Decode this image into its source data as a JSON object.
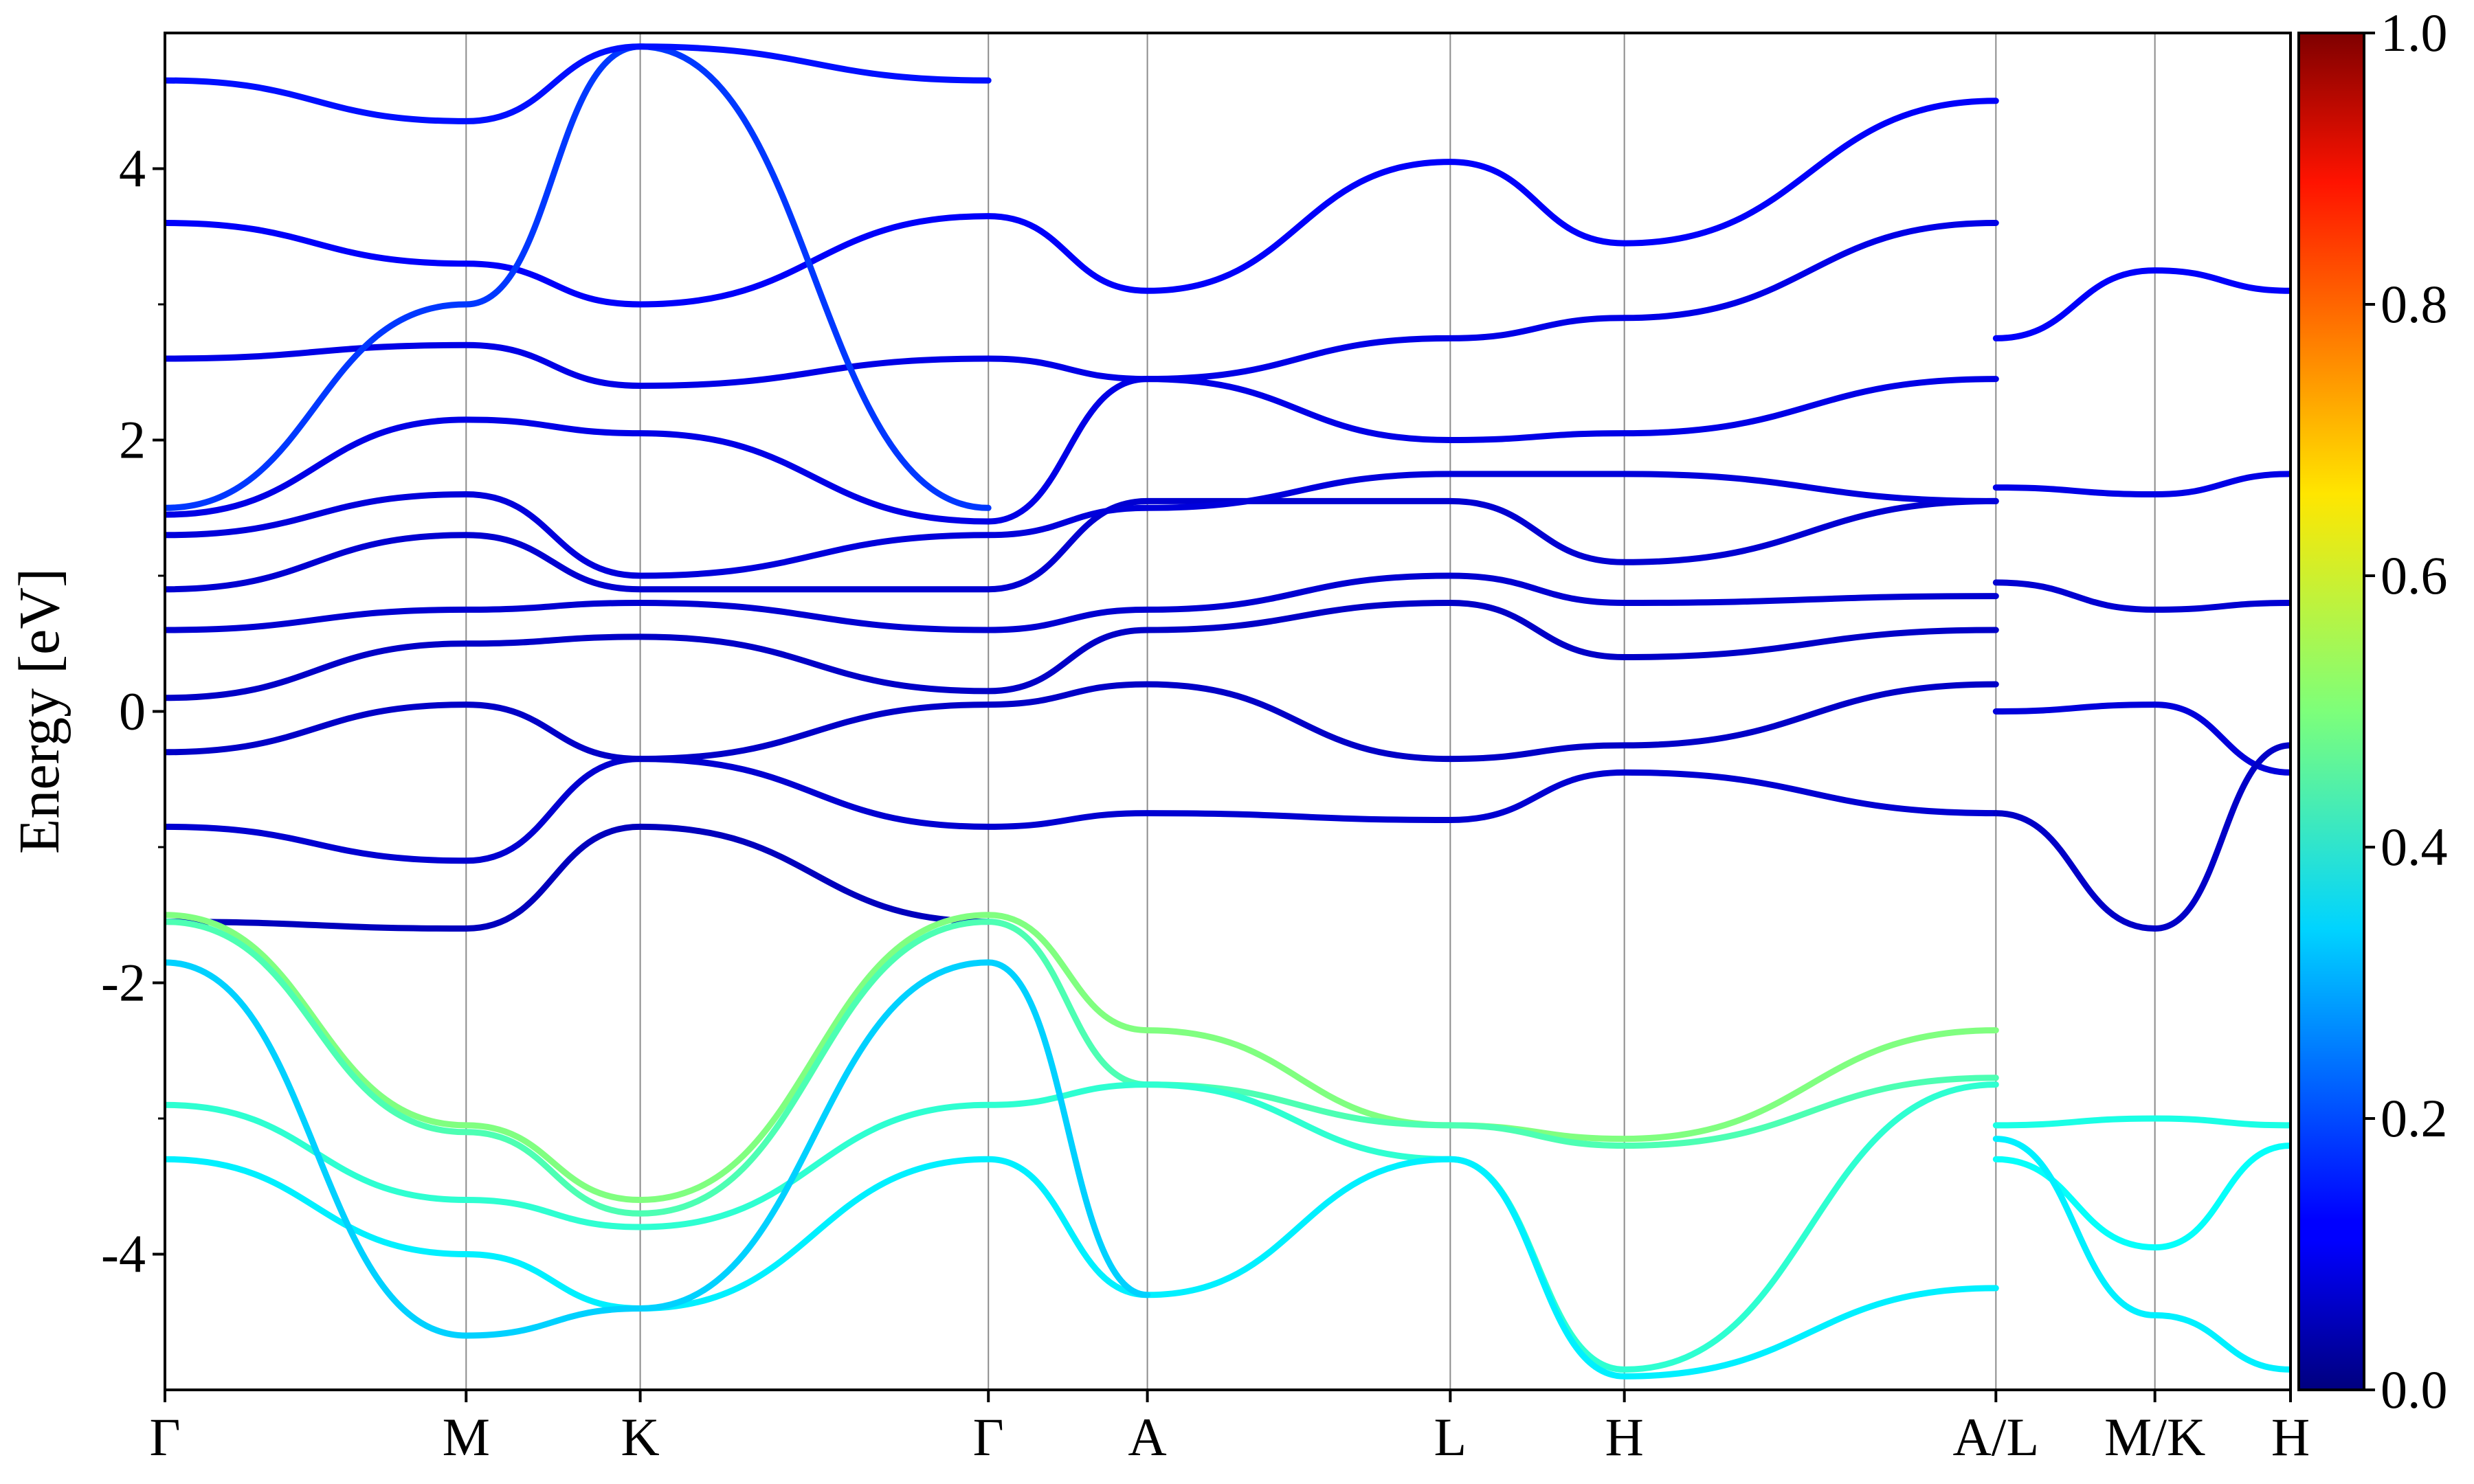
{
  "chart_data": {
    "type": "line",
    "ylabel": "Energy [eV]",
    "xlabel": "",
    "ylim": [
      -5,
      5
    ],
    "xlim": [
      0,
      1
    ],
    "yticks": [
      -4,
      -2,
      0,
      2,
      4
    ],
    "yticks_minor": [
      -3,
      -1,
      1,
      3
    ],
    "grid": "vertical lines at high-symmetry points",
    "kpoints": [
      {
        "label": "Γ",
        "pos": 0.0
      },
      {
        "label": "M",
        "pos": 0.1417
      },
      {
        "label": "K",
        "pos": 0.2236
      },
      {
        "label": "Γ",
        "pos": 0.3874
      },
      {
        "label": "A",
        "pos": 0.4622
      },
      {
        "label": "L",
        "pos": 0.6047
      },
      {
        "label": "H",
        "pos": 0.6866
      },
      {
        "label": "A/L",
        "pos": 0.8614
      },
      {
        "label": "M/K",
        "pos": 0.9362
      },
      {
        "label": "H",
        "pos": 1.0
      }
    ],
    "colorbar": {
      "colormap": "jet",
      "range": [
        0.0,
        1.0
      ],
      "ticks": [
        "0.0",
        "0.2",
        "0.4",
        "0.6",
        "0.8",
        "1.0"
      ],
      "placement": "right"
    },
    "series": [
      {
        "weight": 0.06,
        "x": [
          0,
          0.1417,
          0.2236,
          0.3874
        ],
        "y": [
          -1.55,
          -1.6,
          -0.85,
          -1.55
        ]
      },
      {
        "weight": 0.08,
        "x": [
          0,
          0.1417,
          0.2236,
          0.3874,
          0.4622,
          0.6047,
          0.6866,
          0.8614
        ],
        "y": [
          -0.85,
          -1.1,
          -0.35,
          -0.85,
          -0.75,
          -0.8,
          -0.45,
          -0.75
        ]
      },
      {
        "weight": 0.07,
        "x": [
          0,
          0.1417,
          0.2236,
          0.3874,
          0.4622,
          0.6047,
          0.6866,
          0.8614
        ],
        "y": [
          -0.3,
          0.05,
          -0.35,
          0.05,
          0.2,
          -0.35,
          -0.25,
          0.2
        ]
      },
      {
        "weight": 0.07,
        "x": [
          0,
          0.1417,
          0.2236,
          0.3874,
          0.4622,
          0.6047,
          0.6866,
          0.8614
        ],
        "y": [
          0.1,
          0.5,
          0.55,
          0.15,
          0.6,
          0.8,
          0.4,
          0.6
        ]
      },
      {
        "weight": 0.08,
        "x": [
          0,
          0.1417,
          0.2236,
          0.3874,
          0.4622,
          0.6047,
          0.6866,
          0.8614
        ],
        "y": [
          0.6,
          0.75,
          0.8,
          0.6,
          0.75,
          1.0,
          0.8,
          0.85
        ]
      },
      {
        "weight": 0.08,
        "x": [
          0,
          0.1417,
          0.2236,
          0.3874,
          0.4622,
          0.6047,
          0.6866,
          0.8614
        ],
        "y": [
          0.9,
          1.3,
          0.9,
          0.9,
          1.55,
          1.55,
          1.1,
          1.55
        ]
      },
      {
        "weight": 0.09,
        "x": [
          0,
          0.1417,
          0.2236,
          0.3874,
          0.4622,
          0.6047,
          0.6866,
          0.8614
        ],
        "y": [
          1.3,
          1.6,
          1.0,
          1.3,
          1.5,
          1.75,
          1.75,
          1.55
        ]
      },
      {
        "weight": 0.1,
        "x": [
          0,
          0.1417,
          0.2236,
          0.3874,
          0.4622,
          0.6047,
          0.6866,
          0.8614
        ],
        "y": [
          1.45,
          2.15,
          2.05,
          1.4,
          2.45,
          2.0,
          2.05,
          2.45
        ]
      },
      {
        "weight": 0.1,
        "x": [
          0,
          0.1417,
          0.2236,
          0.3874,
          0.4622,
          0.6047,
          0.6866,
          0.8614
        ],
        "y": [
          2.6,
          2.7,
          2.4,
          2.6,
          2.45,
          2.75,
          2.9,
          3.6
        ]
      },
      {
        "weight": 0.12,
        "x": [
          0,
          0.1417,
          0.2236,
          0.3874,
          0.4622,
          0.6047,
          0.6866,
          0.8614
        ],
        "y": [
          3.6,
          3.3,
          3.0,
          3.65,
          3.1,
          4.05,
          3.45,
          4.5
        ]
      },
      {
        "weight": 0.18,
        "x": [
          0,
          0.1417,
          0.2236,
          0.3874
        ],
        "y": [
          1.5,
          3.0,
          4.9,
          1.5
        ]
      },
      {
        "weight": 0.14,
        "x": [
          0,
          0.1417,
          0.2236,
          0.3874
        ],
        "y": [
          4.65,
          4.35,
          4.9,
          4.65
        ]
      },
      {
        "weight": 0.09,
        "x": [
          0.8614,
          0.9362,
          1.0
        ],
        "y": [
          0.0,
          0.05,
          -0.45
        ]
      },
      {
        "weight": 0.08,
        "x": [
          0.8614,
          0.9362,
          1.0
        ],
        "y": [
          0.95,
          0.75,
          0.8
        ]
      },
      {
        "weight": 0.1,
        "x": [
          0.8614,
          0.9362,
          1.0
        ],
        "y": [
          1.65,
          1.6,
          1.75
        ]
      },
      {
        "weight": 0.12,
        "x": [
          0.8614,
          0.9362,
          1.0
        ],
        "y": [
          2.75,
          3.25,
          3.1
        ]
      },
      {
        "weight": 0.07,
        "x": [
          0.8614,
          0.9362,
          1.0
        ],
        "y": [
          -0.75,
          -1.6,
          -0.25
        ]
      },
      {
        "weight": 0.5,
        "x": [
          0,
          0.1417,
          0.2236,
          0.3874,
          0.4622,
          0.6047,
          0.6866,
          0.8614
        ],
        "y": [
          -1.5,
          -3.05,
          -3.6,
          -1.5,
          -2.35,
          -3.05,
          -3.15,
          -2.35
        ]
      },
      {
        "weight": 0.45,
        "x": [
          0,
          0.1417,
          0.2236,
          0.3874,
          0.4622,
          0.6047,
          0.6866,
          0.8614
        ],
        "y": [
          -1.55,
          -3.1,
          -3.7,
          -1.55,
          -2.75,
          -3.05,
          -3.2,
          -2.7
        ]
      },
      {
        "weight": 0.42,
        "x": [
          0,
          0.1417,
          0.2236,
          0.3874,
          0.4622,
          0.6047,
          0.6866,
          0.8614
        ],
        "y": [
          -2.9,
          -3.6,
          -3.8,
          -2.9,
          -2.75,
          -3.3,
          -4.85,
          -2.75
        ]
      },
      {
        "weight": 0.36,
        "x": [
          0,
          0.1417,
          0.2236,
          0.3874,
          0.4622,
          0.6047,
          0.6866,
          0.8614
        ],
        "y": [
          -3.3,
          -4.0,
          -4.4,
          -3.3,
          -4.3,
          -3.3,
          -4.9,
          -4.25
        ]
      },
      {
        "weight": 0.33,
        "x": [
          0,
          0.1417,
          0.2236,
          0.3874,
          0.4622
        ],
        "y": [
          -1.85,
          -4.6,
          -4.4,
          -1.85,
          -4.3
        ]
      },
      {
        "weight": 0.4,
        "x": [
          0.8614,
          0.9362,
          1.0
        ],
        "y": [
          -3.05,
          -3.0,
          -3.05
        ]
      },
      {
        "weight": 0.38,
        "x": [
          0.8614,
          0.9362,
          1.0
        ],
        "y": [
          -3.3,
          -3.95,
          -3.2
        ]
      },
      {
        "weight": 0.36,
        "x": [
          0.8614,
          0.9362,
          1.0
        ],
        "y": [
          -3.15,
          -4.45,
          -4.85
        ]
      }
    ]
  }
}
